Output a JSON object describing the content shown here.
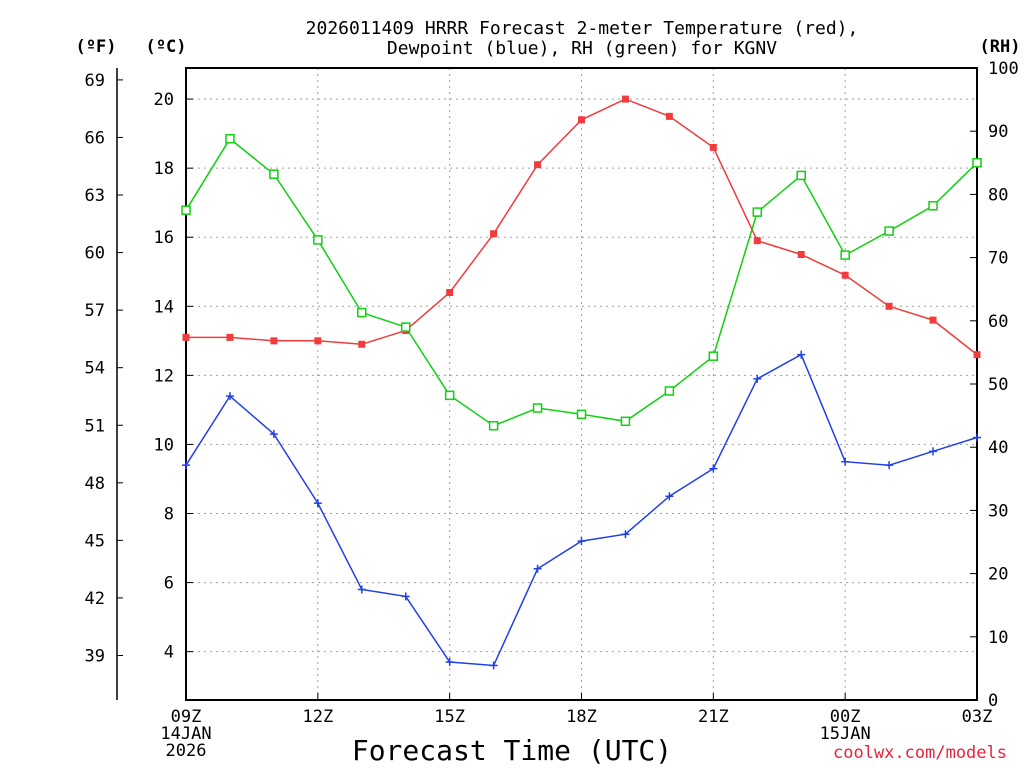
{
  "chart_data": {
    "type": "line",
    "title_line1": "2026011409 HRRR Forecast 2-meter Temperature (red),",
    "title_line2": "Dewpoint (blue), RH (green) for KGNV",
    "xlabel": "Forecast Time (UTC)",
    "credit": "coolwx.com/models",
    "unit_f": "(ºF)",
    "unit_c": "(ºC)",
    "unit_rh": "(RH)",
    "x": [
      0,
      1,
      2,
      3,
      4,
      5,
      6,
      7,
      8,
      9,
      10,
      11,
      12,
      13,
      14,
      15,
      16,
      17,
      18
    ],
    "x_ticks": [
      {
        "pos": 0,
        "lines": [
          "09Z",
          "14JAN",
          "2026"
        ]
      },
      {
        "pos": 3,
        "lines": [
          "12Z"
        ]
      },
      {
        "pos": 6,
        "lines": [
          "15Z"
        ]
      },
      {
        "pos": 9,
        "lines": [
          "18Z"
        ]
      },
      {
        "pos": 12,
        "lines": [
          "21Z"
        ]
      },
      {
        "pos": 15,
        "lines": [
          "00Z",
          "15JAN"
        ]
      },
      {
        "pos": 18,
        "lines": [
          "03Z"
        ]
      }
    ],
    "ylim_c": [
      2.6,
      20.9
    ],
    "ylim_rh": [
      0,
      100
    ],
    "yticks_c": [
      "4",
      "6",
      "8",
      "10",
      "12",
      "14",
      "16",
      "18",
      "20"
    ],
    "yticks_f": [
      "39",
      "42",
      "45",
      "48",
      "51",
      "54",
      "57",
      "60",
      "63",
      "66",
      "69"
    ],
    "yticks_rh": [
      "0",
      "10",
      "20",
      "30",
      "40",
      "50",
      "60",
      "70",
      "80",
      "90",
      "100"
    ],
    "series": [
      {
        "name": "Temperature",
        "unit": "C",
        "color": "#f03c3c",
        "marker": "filled-square",
        "values": [
          13.1,
          13.1,
          13.0,
          13.0,
          12.9,
          13.3,
          14.4,
          16.1,
          18.1,
          19.4,
          20.0,
          19.5,
          18.6,
          15.9,
          15.5,
          14.9,
          14.0,
          13.6,
          12.6
        ]
      },
      {
        "name": "Dewpoint",
        "unit": "C",
        "color": "#2040e8",
        "marker": "plus",
        "values": [
          9.4,
          11.4,
          10.3,
          8.3,
          5.8,
          5.6,
          3.7,
          3.6,
          6.4,
          7.2,
          7.4,
          8.5,
          9.3,
          11.9,
          12.6,
          9.5,
          9.4,
          9.8,
          10.2
        ]
      },
      {
        "name": "RH",
        "unit": "%",
        "color": "#10d010",
        "marker": "open-square",
        "values": [
          77.5,
          88.8,
          83.2,
          72.8,
          61.3,
          59.0,
          48.2,
          43.4,
          46.2,
          45.2,
          44.1,
          48.9,
          54.4,
          77.2,
          83.0,
          70.4,
          74.2,
          78.2,
          85.0
        ]
      }
    ]
  }
}
